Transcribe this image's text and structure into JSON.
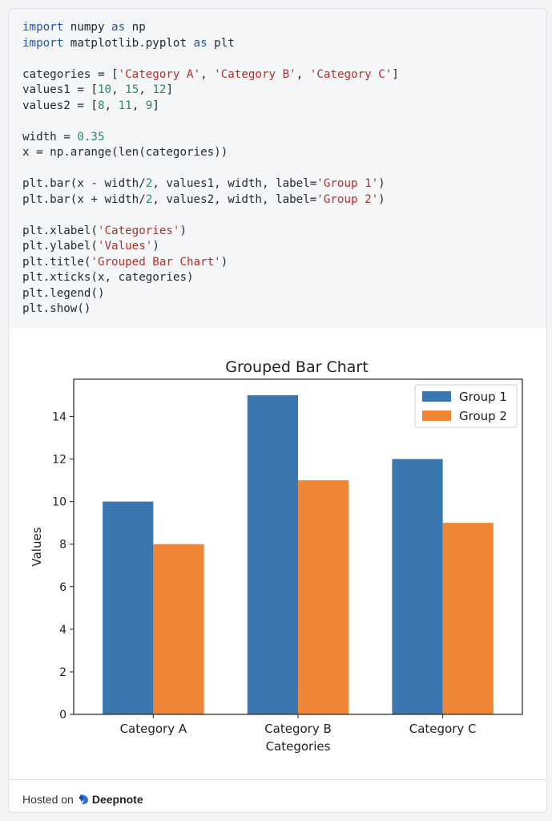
{
  "code_lines": [
    [
      {
        "t": "import",
        "c": "kw"
      },
      {
        "t": " numpy "
      },
      {
        "t": "as",
        "c": "kw"
      },
      {
        "t": " np"
      }
    ],
    [
      {
        "t": "import",
        "c": "kw"
      },
      {
        "t": " matplotlib.pyplot "
      },
      {
        "t": "as",
        "c": "kw"
      },
      {
        "t": " plt"
      }
    ],
    [],
    [
      {
        "t": "categories = ["
      },
      {
        "t": "'Category A'",
        "c": "str"
      },
      {
        "t": ", "
      },
      {
        "t": "'Category B'",
        "c": "str"
      },
      {
        "t": ", "
      },
      {
        "t": "'Category C'",
        "c": "str"
      },
      {
        "t": "]"
      }
    ],
    [
      {
        "t": "values1 = ["
      },
      {
        "t": "10",
        "c": "num"
      },
      {
        "t": ", "
      },
      {
        "t": "15",
        "c": "num"
      },
      {
        "t": ", "
      },
      {
        "t": "12",
        "c": "num"
      },
      {
        "t": "]"
      }
    ],
    [
      {
        "t": "values2 = ["
      },
      {
        "t": "8",
        "c": "num"
      },
      {
        "t": ", "
      },
      {
        "t": "11",
        "c": "num"
      },
      {
        "t": ", "
      },
      {
        "t": "9",
        "c": "num"
      },
      {
        "t": "]"
      }
    ],
    [],
    [
      {
        "t": "width = "
      },
      {
        "t": "0.35",
        "c": "num"
      }
    ],
    [
      {
        "t": "x = np.arange(len(categories))"
      }
    ],
    [],
    [
      {
        "t": "plt.bar(x - width/"
      },
      {
        "t": "2",
        "c": "num"
      },
      {
        "t": ", values1, width, label="
      },
      {
        "t": "'Group 1'",
        "c": "str"
      },
      {
        "t": ")"
      }
    ],
    [
      {
        "t": "plt.bar(x + width/"
      },
      {
        "t": "2",
        "c": "num"
      },
      {
        "t": ", values2, width, label="
      },
      {
        "t": "'Group 2'",
        "c": "str"
      },
      {
        "t": ")"
      }
    ],
    [],
    [
      {
        "t": "plt.xlabel("
      },
      {
        "t": "'Categories'",
        "c": "str"
      },
      {
        "t": ")"
      }
    ],
    [
      {
        "t": "plt.ylabel("
      },
      {
        "t": "'Values'",
        "c": "str"
      },
      {
        "t": ")"
      }
    ],
    [
      {
        "t": "plt.title("
      },
      {
        "t": "'Grouped Bar Chart'",
        "c": "str"
      },
      {
        "t": ")"
      }
    ],
    [
      {
        "t": "plt.xticks(x, categories)"
      }
    ],
    [
      {
        "t": "plt.legend()"
      }
    ],
    [
      {
        "t": "plt.show()"
      }
    ]
  ],
  "chart_data": {
    "type": "bar",
    "title": "Grouped Bar Chart",
    "xlabel": "Categories",
    "ylabel": "Values",
    "categories": [
      "Category A",
      "Category B",
      "Category C"
    ],
    "series": [
      {
        "name": "Group 1",
        "values": [
          10,
          15,
          12
        ],
        "color": "#3a76b0"
      },
      {
        "name": "Group 2",
        "values": [
          8,
          11,
          9
        ],
        "color": "#ef8636"
      }
    ],
    "bar_width": 0.35,
    "ylim": [
      0,
      15.75
    ],
    "yticks": [
      0,
      2,
      4,
      6,
      8,
      10,
      12,
      14
    ],
    "legend": "top-right"
  },
  "footer": {
    "hosted_on": "Hosted on",
    "brand": "Deepnote"
  },
  "colors": {
    "keyword": "#1e56a8",
    "string": "#b1302b",
    "number": "#2f8a5c"
  }
}
